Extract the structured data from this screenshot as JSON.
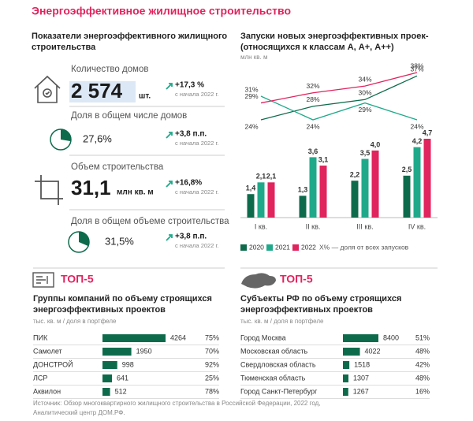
{
  "title": "Энергоэффективное жилищное строительство",
  "indicators": {
    "title": [
      "Показатели энергоэффективного жилищного",
      "строительства"
    ],
    "kpis": [
      {
        "label": "Количество домов",
        "value": "2 574",
        "unit": "шт.",
        "change": "+17,3 %",
        "since": "с начала 2022 г."
      },
      {
        "label": "Доля в общем числе домов",
        "share": 27.6,
        "share_label": "27,6%",
        "change": "+3,8 п.п.",
        "since": "с начала 2022 г."
      },
      {
        "label": "Объем строительства",
        "value": "31,1",
        "unit": "млн кв. м",
        "change": "+16,8%",
        "since": "с начала 2022 г."
      },
      {
        "label": "Доля в общем объеме строительства",
        "share": 31.5,
        "share_label": "31,5%",
        "change": "+3,8 п.п.",
        "since": "с начала 2022 г."
      }
    ]
  },
  "chart_data": {
    "type": "bar",
    "title": [
      "Запуски новых энергоэффективных проек-",
      "(относящихся к классам А, А+, А++)"
    ],
    "unit": "млн кв. м",
    "categories": [
      "I кв.",
      "II кв.",
      "III кв.",
      "IV кв."
    ],
    "series": [
      {
        "name": "2020",
        "color": "#0d6b4c",
        "values": [
          1.4,
          1.3,
          2.2,
          2.5
        ],
        "value_labels": [
          "1,4",
          "1,3",
          "2,2",
          "2,5"
        ],
        "shares": [
          24,
          28,
          30,
          37
        ],
        "share_labels": [
          "24%",
          "28%",
          "30%",
          "37%"
        ]
      },
      {
        "name": "2021",
        "color": "#1fa98a",
        "values": [
          2.1,
          3.6,
          3.5,
          4.2
        ],
        "value_labels": [
          "2,1",
          "3,6",
          "3,5",
          "4,2"
        ],
        "shares": [
          31,
          24,
          29,
          24
        ],
        "share_labels": [
          "31%",
          "24%",
          "29%",
          "24%"
        ]
      },
      {
        "name": "2022",
        "color": "#e0245e",
        "values": [
          2.1,
          3.1,
          4.0,
          4.7
        ],
        "value_labels": [
          "2,1",
          "3,1",
          "4,0",
          "4,7"
        ],
        "shares": [
          29,
          32,
          34,
          38
        ],
        "share_labels": [
          "29%",
          "32%",
          "34%",
          "38%"
        ]
      }
    ],
    "share_note": "Х% — доля от всех запусков"
  },
  "top5": [
    {
      "badge": "ТОП-5",
      "title": [
        "Группы компаний по объему строящихся",
        "энергоэффективных проектов"
      ],
      "unit": "тыс. кв. м / доля в портфеле",
      "rows": [
        {
          "name": "ПИК",
          "value": 4264,
          "share": "75%"
        },
        {
          "name": "Самолет",
          "value": 1950,
          "share": "70%"
        },
        {
          "name": "ДОНСТРОЙ",
          "value": 998,
          "share": "92%"
        },
        {
          "name": "ЛСР",
          "value": 641,
          "share": "25%"
        },
        {
          "name": "Аквилон",
          "value": 512,
          "share": "78%"
        }
      ]
    },
    {
      "badge": "ТОП-5",
      "title": [
        "Субъекты РФ по объему строящихся",
        "энергоэффективных проектов"
      ],
      "unit": "тыс. кв. м / доля в портфеле",
      "rows": [
        {
          "name": "Город Москва",
          "value": 8400,
          "share": "51%"
        },
        {
          "name": "Московская область",
          "value": 4022,
          "share": "48%"
        },
        {
          "name": "Свердловская область",
          "value": 1518,
          "share": "42%"
        },
        {
          "name": "Тюменская область",
          "value": 1307,
          "share": "48%"
        },
        {
          "name": "Город Санкт-Петербург",
          "value": 1267,
          "share": "16%"
        }
      ]
    }
  ],
  "source": [
    "Источник: Обзор многоквартирного жилищного строительства в Российской Федерации, 2022 год,",
    "Аналитический центр ДОМ.РФ."
  ]
}
